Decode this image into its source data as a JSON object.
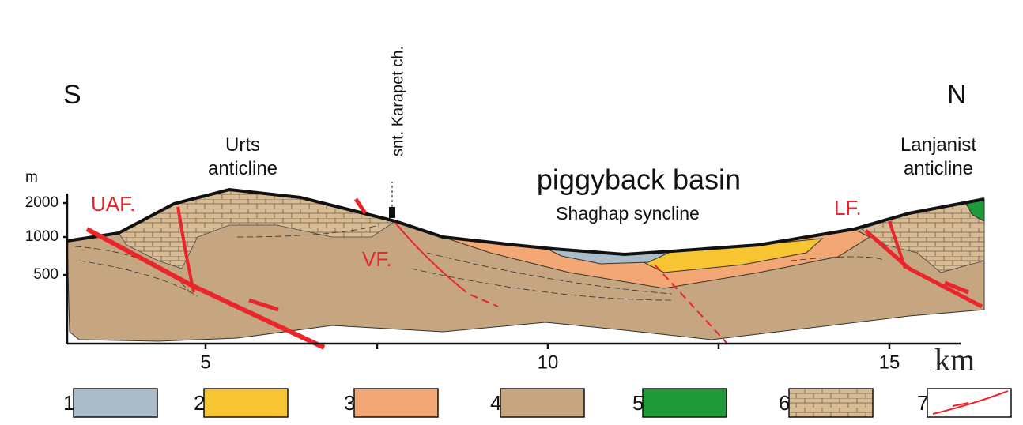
{
  "orientation": {
    "south": "S",
    "north": "N"
  },
  "structures": {
    "urts": "Urts anticline",
    "church": "snt. Karapet ch.",
    "basin": "piggyback basin",
    "syncline": "Shaghap  syncline",
    "lanjanist": "Lanjanist anticline"
  },
  "faults": {
    "uaf": "UAF.",
    "vf": "VF.",
    "lf": "LF."
  },
  "elevation_axis": {
    "unit": "m",
    "ticks": [
      "2000",
      "1000",
      "500"
    ]
  },
  "distance_axis": {
    "unit": "km",
    "ticks": [
      "5",
      "10",
      "15"
    ]
  },
  "legend": [
    "1",
    "2",
    "3",
    "4",
    "5",
    "6",
    "7"
  ]
}
